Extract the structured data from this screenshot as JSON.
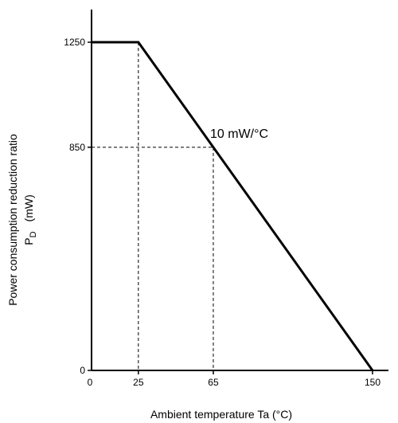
{
  "chart_data": {
    "type": "line",
    "title": "",
    "xlabel": "Ambient temperature    Ta    (°C)",
    "ylabel_line1": "Power consumption reduction ratio",
    "ylabel_line2_main": "P",
    "ylabel_line2_sub": "D",
    "ylabel_line2_unit": "(mW)",
    "x_ticks": [
      {
        "value": 0,
        "label": "0"
      },
      {
        "value": 25,
        "label": "25"
      },
      {
        "value": 65,
        "label": "65"
      },
      {
        "value": 150,
        "label": "150"
      }
    ],
    "y_ticks": [
      {
        "value": 0,
        "label": "0"
      },
      {
        "value": 850,
        "label": "850"
      },
      {
        "value": 1250,
        "label": "1250"
      }
    ],
    "xlim": [
      0,
      150
    ],
    "ylim": [
      0,
      1250
    ],
    "series": [
      {
        "x": [
          0,
          25,
          150
        ],
        "y": [
          1250,
          1250,
          0
        ]
      }
    ],
    "guides": [
      {
        "x": 25,
        "y": 1250
      },
      {
        "x": 65,
        "y": 850
      }
    ],
    "annotation": {
      "text": "10 mW/°C",
      "x": 65,
      "y": 850
    },
    "grid": false
  }
}
